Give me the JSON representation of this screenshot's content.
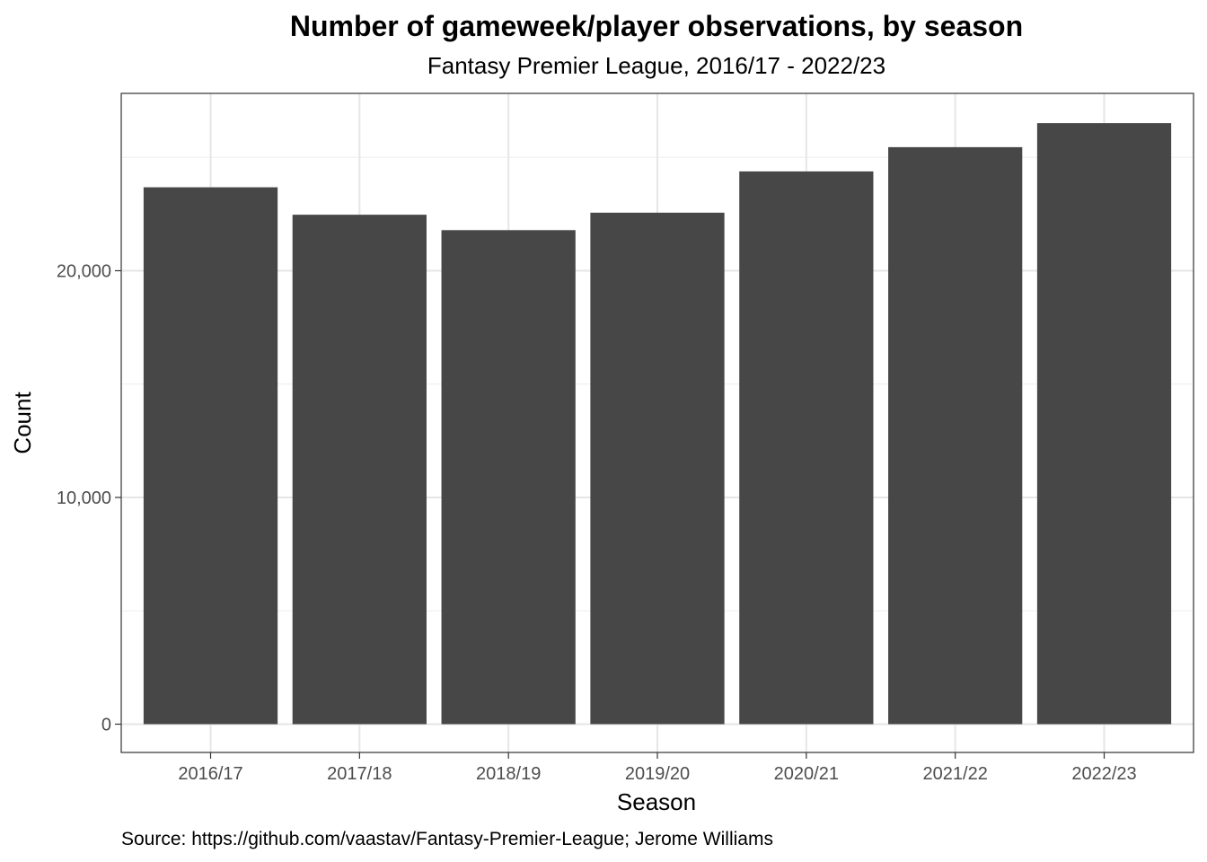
{
  "chart_data": {
    "type": "bar",
    "title": "Number of gameweek/player observations, by season",
    "subtitle": "Fantasy Premier League, 2016/17 - 2022/23",
    "xlabel": "Season",
    "ylabel": "Count",
    "caption": "Source: https://github.com/vaastav/Fantasy-Premier-League; Jerome Williams",
    "categories": [
      "2016/17",
      "2017/18",
      "2018/19",
      "2019/20",
      "2020/21",
      "2021/22",
      "2022/23"
    ],
    "values": [
      23680,
      22470,
      21790,
      22560,
      24380,
      25450,
      26510
    ],
    "ylim": [
      0,
      28000
    ],
    "yticks": [
      0,
      10000,
      20000
    ],
    "ytick_labels": [
      "0",
      "10,000",
      "20,000"
    ],
    "grid": true,
    "bar_color": "#474747"
  }
}
